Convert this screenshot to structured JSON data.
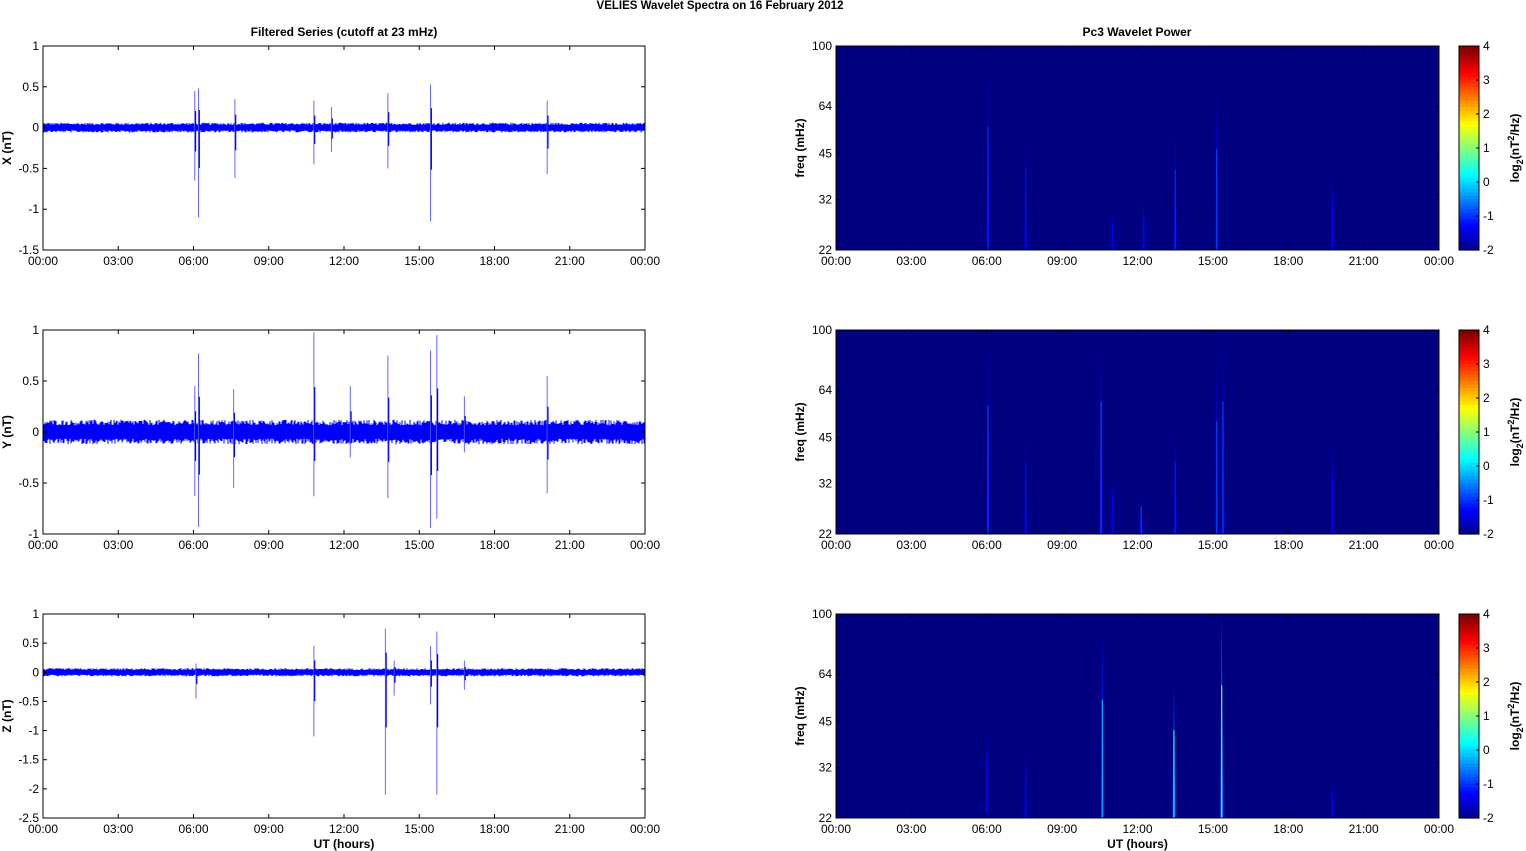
{
  "figure_title": "VELIES Wavelet Spectra on 16 February  2012",
  "left_title": "Filtered Series (cutoff at 23 mHz)",
  "right_title": "Pc3 Wavelet Power",
  "colorbar_label": "log2(nT2/Hz)",
  "colors": {
    "trace": "#0000ff",
    "spectrum_background": "#00008f",
    "axes": "#000000",
    "colormap": "jet"
  },
  "chart_data": [
    {
      "type": "line",
      "title": "Filtered Series (cutoff at 23 mHz)",
      "ylabel": "X (nT)",
      "xlabel": "",
      "xlim": [
        0,
        24
      ],
      "ylim": [
        -1.5,
        1
      ],
      "x_ticks": [
        "00:00",
        "03:00",
        "06:00",
        "09:00",
        "12:00",
        "15:00",
        "18:00",
        "21:00",
        "00:00"
      ],
      "y_ticks": [
        "1",
        "0.5",
        "0",
        "-0.5",
        "-1",
        "-1.5"
      ],
      "noise_amplitude": 0.06,
      "spikes": [
        {
          "t": 6.05,
          "min": -0.65,
          "max": 0.45
        },
        {
          "t": 6.2,
          "min": -1.1,
          "max": 0.48
        },
        {
          "t": 7.65,
          "min": -0.62,
          "max": 0.35
        },
        {
          "t": 10.8,
          "min": -0.45,
          "max": 0.33
        },
        {
          "t": 11.5,
          "min": -0.3,
          "max": 0.25
        },
        {
          "t": 13.75,
          "min": -0.5,
          "max": 0.42
        },
        {
          "t": 15.45,
          "min": -1.15,
          "max": 0.53
        },
        {
          "t": 20.1,
          "min": -0.57,
          "max": 0.33
        }
      ]
    },
    {
      "type": "heatmap",
      "title": "Pc3 Wavelet Power",
      "ylabel": "freq (mHz)",
      "xlabel": "",
      "xlim": [
        0,
        24
      ],
      "ylim": [
        22,
        100
      ],
      "y_scale": "log",
      "x_ticks": [
        "00:00",
        "03:00",
        "06:00",
        "09:00",
        "12:00",
        "15:00",
        "18:00",
        "21:00",
        "00:00"
      ],
      "y_ticks": [
        "100",
        "64",
        "45",
        "32",
        "22"
      ],
      "colorbar_range": [
        -2,
        4
      ],
      "colorbar_ticks": [
        "4",
        "3",
        "2",
        "1",
        "0",
        "-1",
        "-2"
      ],
      "background_value": -2,
      "events": [
        {
          "t": 6.05,
          "f_top": 90,
          "peak": -1.0
        },
        {
          "t": 7.55,
          "f_top": 55,
          "peak": -1.2
        },
        {
          "t": 11.0,
          "f_top": 30,
          "peak": -1.3
        },
        {
          "t": 12.25,
          "f_top": 33,
          "peak": -1.2
        },
        {
          "t": 13.5,
          "f_top": 55,
          "peak": -1.0
        },
        {
          "t": 15.15,
          "f_top": 70,
          "peak": -0.9
        },
        {
          "t": 19.75,
          "f_top": 40,
          "peak": -1.3
        }
      ]
    },
    {
      "type": "line",
      "title": "",
      "ylabel": "Y (nT)",
      "xlabel": "",
      "xlim": [
        0,
        24
      ],
      "ylim": [
        -1,
        1
      ],
      "x_ticks": [
        "00:00",
        "03:00",
        "06:00",
        "09:00",
        "12:00",
        "15:00",
        "18:00",
        "21:00",
        "00:00"
      ],
      "y_ticks": [
        "1",
        "0.5",
        "0",
        "-0.5",
        "-1"
      ],
      "noise_amplitude": 0.12,
      "spikes": [
        {
          "t": 6.05,
          "min": -0.63,
          "max": 0.45
        },
        {
          "t": 6.2,
          "min": -0.93,
          "max": 0.77
        },
        {
          "t": 7.6,
          "min": -0.55,
          "max": 0.42
        },
        {
          "t": 10.8,
          "min": -0.63,
          "max": 0.98
        },
        {
          "t": 12.25,
          "min": -0.25,
          "max": 0.45
        },
        {
          "t": 13.75,
          "min": -0.65,
          "max": 0.75
        },
        {
          "t": 15.45,
          "min": -0.94,
          "max": 0.8
        },
        {
          "t": 15.7,
          "min": -0.85,
          "max": 0.95
        },
        {
          "t": 16.8,
          "min": -0.2,
          "max": 0.35
        },
        {
          "t": 20.1,
          "min": -0.6,
          "max": 0.55
        }
      ]
    },
    {
      "type": "heatmap",
      "title": "",
      "ylabel": "freq (mHz)",
      "xlabel": "",
      "xlim": [
        0,
        24
      ],
      "ylim": [
        22,
        100
      ],
      "y_scale": "log",
      "x_ticks": [
        "00:00",
        "03:00",
        "06:00",
        "09:00",
        "12:00",
        "15:00",
        "18:00",
        "21:00",
        "00:00"
      ],
      "y_ticks": [
        "100",
        "64",
        "45",
        "32",
        "22"
      ],
      "colorbar_range": [
        -2,
        4
      ],
      "colorbar_ticks": [
        "4",
        "3",
        "2",
        "1",
        "0",
        "-1",
        "-2"
      ],
      "background_value": -2,
      "events": [
        {
          "t": 6.05,
          "f_top": 95,
          "peak": -0.9
        },
        {
          "t": 7.55,
          "f_top": 50,
          "peak": -1.2
        },
        {
          "t": 10.55,
          "f_top": 100,
          "peak": -0.8
        },
        {
          "t": 11.0,
          "f_top": 35,
          "peak": -1.3
        },
        {
          "t": 12.15,
          "f_top": 30,
          "peak": -0.9
        },
        {
          "t": 13.5,
          "f_top": 50,
          "peak": -1.1
        },
        {
          "t": 15.15,
          "f_top": 80,
          "peak": -0.9
        },
        {
          "t": 15.4,
          "f_top": 100,
          "peak": -0.9
        },
        {
          "t": 19.75,
          "f_top": 45,
          "peak": -1.3
        }
      ]
    },
    {
      "type": "line",
      "title": "",
      "ylabel": "Z (nT)",
      "xlabel": "UT (hours)",
      "xlim": [
        0,
        24
      ],
      "ylim": [
        -2.5,
        1
      ],
      "x_ticks": [
        "00:00",
        "03:00",
        "06:00",
        "09:00",
        "12:00",
        "15:00",
        "18:00",
        "21:00",
        "00:00"
      ],
      "y_ticks": [
        "1",
        "0.5",
        "0",
        "-0.5",
        "-1",
        "-1.5",
        "-2",
        "-2.5"
      ],
      "noise_amplitude": 0.07,
      "spikes": [
        {
          "t": 6.1,
          "min": -0.45,
          "max": 0.15
        },
        {
          "t": 10.8,
          "min": -1.1,
          "max": 0.45
        },
        {
          "t": 13.65,
          "min": -2.1,
          "max": 0.75
        },
        {
          "t": 14.0,
          "min": -0.4,
          "max": 0.2
        },
        {
          "t": 15.45,
          "min": -0.55,
          "max": 0.45
        },
        {
          "t": 15.7,
          "min": -2.1,
          "max": 0.7
        },
        {
          "t": 16.8,
          "min": -0.3,
          "max": 0.2
        }
      ]
    },
    {
      "type": "heatmap",
      "title": "",
      "ylabel": "freq (mHz)",
      "xlabel": "UT (hours)",
      "xlim": [
        0,
        24
      ],
      "ylim": [
        22,
        100
      ],
      "y_scale": "log",
      "x_ticks": [
        "00:00",
        "03:00",
        "06:00",
        "09:00",
        "12:00",
        "15:00",
        "18:00",
        "21:00",
        "00:00"
      ],
      "y_ticks": [
        "100",
        "64",
        "45",
        "32",
        "22"
      ],
      "colorbar_range": [
        -2,
        4
      ],
      "colorbar_ticks": [
        "4",
        "3",
        "2",
        "1",
        "0",
        "-1",
        "-2"
      ],
      "background_value": -2,
      "events": [
        {
          "t": 6.0,
          "f_top": 45,
          "peak": -1.3
        },
        {
          "t": 7.55,
          "f_top": 40,
          "peak": -1.3
        },
        {
          "t": 10.6,
          "f_top": 85,
          "peak": -0.2
        },
        {
          "t": 13.45,
          "f_top": 60,
          "peak": 0.3
        },
        {
          "t": 15.35,
          "f_top": 100,
          "peak": 0.6
        },
        {
          "t": 19.75,
          "f_top": 30,
          "peak": -1.4
        }
      ]
    }
  ]
}
